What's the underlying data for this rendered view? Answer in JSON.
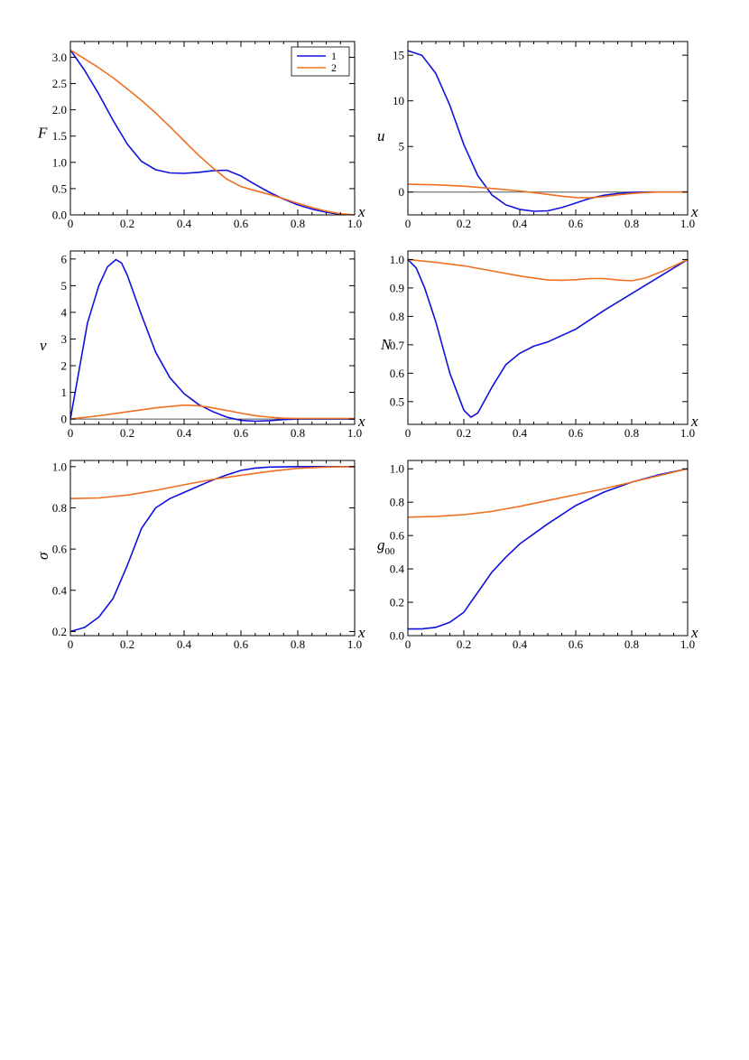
{
  "colors": {
    "series_1": "#1111dd",
    "series_2": "#f07020",
    "axes": "#000000",
    "zero_line": "#555555"
  },
  "chart_data": [
    {
      "type": "line",
      "ylabel": "F",
      "xlabel": "x",
      "xlim": [
        0,
        1.0
      ],
      "ylim": [
        0,
        3.3
      ],
      "grid": false,
      "legend": "top-right",
      "xticks": [
        "0",
        "0.2",
        "0.4",
        "0.6",
        "0.8",
        "1.0"
      ],
      "yticks": [
        "0.0",
        "0.5",
        "1.0",
        "1.5",
        "2.0",
        "2.5",
        "3.0"
      ],
      "series": [
        {
          "name": "1",
          "points": [
            [
              0,
              3.14
            ],
            [
              0.05,
              2.75
            ],
            [
              0.1,
              2.3
            ],
            [
              0.15,
              1.8
            ],
            [
              0.2,
              1.35
            ],
            [
              0.25,
              1.02
            ],
            [
              0.3,
              0.86
            ],
            [
              0.35,
              0.8
            ],
            [
              0.4,
              0.79
            ],
            [
              0.45,
              0.81
            ],
            [
              0.5,
              0.84
            ],
            [
              0.55,
              0.85
            ],
            [
              0.6,
              0.74
            ],
            [
              0.65,
              0.58
            ],
            [
              0.7,
              0.43
            ],
            [
              0.75,
              0.3
            ],
            [
              0.8,
              0.19
            ],
            [
              0.85,
              0.11
            ],
            [
              0.9,
              0.05
            ],
            [
              0.95,
              0.01
            ],
            [
              1.0,
              0
            ]
          ]
        },
        {
          "name": "2",
          "points": [
            [
              0,
              3.14
            ],
            [
              0.05,
              2.97
            ],
            [
              0.1,
              2.8
            ],
            [
              0.15,
              2.61
            ],
            [
              0.2,
              2.4
            ],
            [
              0.25,
              2.18
            ],
            [
              0.3,
              1.94
            ],
            [
              0.35,
              1.68
            ],
            [
              0.4,
              1.41
            ],
            [
              0.45,
              1.14
            ],
            [
              0.5,
              0.9
            ],
            [
              0.55,
              0.68
            ],
            [
              0.6,
              0.54
            ],
            [
              0.65,
              0.46
            ],
            [
              0.7,
              0.39
            ],
            [
              0.75,
              0.31
            ],
            [
              0.8,
              0.22
            ],
            [
              0.85,
              0.14
            ],
            [
              0.9,
              0.07
            ],
            [
              0.95,
              0.02
            ],
            [
              1.0,
              0
            ]
          ]
        }
      ]
    },
    {
      "type": "line",
      "ylabel": "u",
      "xlabel": "x",
      "xlim": [
        0,
        1.0
      ],
      "ylim": [
        -2.5,
        16.5
      ],
      "grid": false,
      "xticks": [
        "0",
        "0.2",
        "0.4",
        "0.6",
        "0.8",
        "1.0"
      ],
      "yticks": [
        "0",
        "5",
        "10",
        "15"
      ],
      "series": [
        {
          "name": "1",
          "points": [
            [
              0,
              15.5
            ],
            [
              0.05,
              15
            ],
            [
              0.1,
              13
            ],
            [
              0.15,
              9.5
            ],
            [
              0.2,
              5.2
            ],
            [
              0.25,
              1.8
            ],
            [
              0.3,
              -0.3
            ],
            [
              0.35,
              -1.4
            ],
            [
              0.4,
              -1.9
            ],
            [
              0.45,
              -2.1
            ],
            [
              0.5,
              -2.05
            ],
            [
              0.55,
              -1.7
            ],
            [
              0.6,
              -1.2
            ],
            [
              0.65,
              -0.7
            ],
            [
              0.7,
              -0.35
            ],
            [
              0.75,
              -0.15
            ],
            [
              0.8,
              -0.05
            ],
            [
              0.85,
              0
            ],
            [
              0.9,
              0
            ],
            [
              1.0,
              0
            ]
          ]
        },
        {
          "name": "2",
          "points": [
            [
              0,
              0.85
            ],
            [
              0.1,
              0.8
            ],
            [
              0.2,
              0.65
            ],
            [
              0.3,
              0.4
            ],
            [
              0.4,
              0.12
            ],
            [
              0.5,
              -0.25
            ],
            [
              0.55,
              -0.45
            ],
            [
              0.6,
              -0.6
            ],
            [
              0.65,
              -0.62
            ],
            [
              0.7,
              -0.5
            ],
            [
              0.75,
              -0.3
            ],
            [
              0.8,
              -0.15
            ],
            [
              0.85,
              -0.05
            ],
            [
              0.9,
              0
            ],
            [
              1.0,
              0
            ]
          ]
        }
      ]
    },
    {
      "type": "line",
      "ylabel": "v",
      "xlabel": "x",
      "xlim": [
        0,
        1.0
      ],
      "ylim": [
        -0.2,
        6.3
      ],
      "grid": false,
      "xticks": [
        "0",
        "0.2",
        "0.4",
        "0.6",
        "0.8",
        "1.0"
      ],
      "yticks": [
        "0",
        "1",
        "2",
        "3",
        "4",
        "5",
        "6"
      ],
      "series": [
        {
          "name": "1",
          "points": [
            [
              0,
              0
            ],
            [
              0.03,
              1.8
            ],
            [
              0.06,
              3.6
            ],
            [
              0.1,
              5.0
            ],
            [
              0.13,
              5.7
            ],
            [
              0.16,
              5.98
            ],
            [
              0.18,
              5.85
            ],
            [
              0.2,
              5.4
            ],
            [
              0.25,
              3.9
            ],
            [
              0.3,
              2.5
            ],
            [
              0.35,
              1.55
            ],
            [
              0.4,
              0.95
            ],
            [
              0.45,
              0.55
            ],
            [
              0.5,
              0.28
            ],
            [
              0.55,
              0.07
            ],
            [
              0.6,
              -0.05
            ],
            [
              0.65,
              -0.08
            ],
            [
              0.7,
              -0.06
            ],
            [
              0.75,
              -0.02
            ],
            [
              0.8,
              0
            ],
            [
              1.0,
              0
            ]
          ]
        },
        {
          "name": "2",
          "points": [
            [
              0,
              0
            ],
            [
              0.1,
              0.12
            ],
            [
              0.2,
              0.27
            ],
            [
              0.3,
              0.42
            ],
            [
              0.4,
              0.52
            ],
            [
              0.45,
              0.5
            ],
            [
              0.5,
              0.42
            ],
            [
              0.55,
              0.32
            ],
            [
              0.6,
              0.22
            ],
            [
              0.65,
              0.13
            ],
            [
              0.7,
              0.07
            ],
            [
              0.75,
              0.03
            ],
            [
              0.8,
              0.02
            ],
            [
              0.9,
              0.02
            ],
            [
              1.0,
              0.02
            ]
          ]
        }
      ]
    },
    {
      "type": "line",
      "ylabel": "N",
      "xlabel": "x",
      "xlim": [
        0,
        1.0
      ],
      "ylim": [
        0.42,
        1.03
      ],
      "grid": false,
      "xticks": [
        "0",
        "0.2",
        "0.4",
        "0.6",
        "0.8",
        "1.0"
      ],
      "yticks": [
        "0.5",
        "0.6",
        "0.7",
        "0.8",
        "0.9",
        "1.0"
      ],
      "ytick_values": [
        0.5,
        0.6,
        0.7,
        0.8,
        0.9,
        1.0
      ],
      "series": [
        {
          "name": "1",
          "points": [
            [
              0,
              1.0
            ],
            [
              0.03,
              0.97
            ],
            [
              0.06,
              0.9
            ],
            [
              0.1,
              0.78
            ],
            [
              0.15,
              0.6
            ],
            [
              0.2,
              0.47
            ],
            [
              0.225,
              0.445
            ],
            [
              0.25,
              0.46
            ],
            [
              0.3,
              0.55
            ],
            [
              0.35,
              0.63
            ],
            [
              0.4,
              0.67
            ],
            [
              0.45,
              0.695
            ],
            [
              0.5,
              0.71
            ],
            [
              0.6,
              0.755
            ],
            [
              0.7,
              0.82
            ],
            [
              0.8,
              0.88
            ],
            [
              0.9,
              0.94
            ],
            [
              1.0,
              1.0
            ]
          ]
        },
        {
          "name": "2",
          "points": [
            [
              0,
              1.0
            ],
            [
              0.1,
              0.99
            ],
            [
              0.2,
              0.978
            ],
            [
              0.3,
              0.96
            ],
            [
              0.4,
              0.942
            ],
            [
              0.5,
              0.928
            ],
            [
              0.55,
              0.927
            ],
            [
              0.6,
              0.929
            ],
            [
              0.65,
              0.933
            ],
            [
              0.7,
              0.933
            ],
            [
              0.75,
              0.928
            ],
            [
              0.8,
              0.925
            ],
            [
              0.85,
              0.935
            ],
            [
              0.9,
              0.955
            ],
            [
              0.95,
              0.977
            ],
            [
              1.0,
              1.0
            ]
          ]
        }
      ]
    },
    {
      "type": "line",
      "ylabel": "σ",
      "xlabel": "x",
      "xlim": [
        0,
        1.0
      ],
      "ylim": [
        0.18,
        1.03
      ],
      "grid": false,
      "xticks": [
        "0",
        "0.2",
        "0.4",
        "0.6",
        "0.8",
        "1.0"
      ],
      "yticks": [
        "0.2",
        "0.4",
        "0.6",
        "0.8",
        "1.0"
      ],
      "series": [
        {
          "name": "1",
          "points": [
            [
              0,
              0.2
            ],
            [
              0.05,
              0.22
            ],
            [
              0.1,
              0.27
            ],
            [
              0.15,
              0.36
            ],
            [
              0.2,
              0.52
            ],
            [
              0.25,
              0.7
            ],
            [
              0.3,
              0.8
            ],
            [
              0.35,
              0.845
            ],
            [
              0.4,
              0.875
            ],
            [
              0.45,
              0.905
            ],
            [
              0.5,
              0.935
            ],
            [
              0.55,
              0.96
            ],
            [
              0.6,
              0.982
            ],
            [
              0.65,
              0.993
            ],
            [
              0.7,
              0.998
            ],
            [
              0.8,
              1.0
            ],
            [
              1.0,
              1.0
            ]
          ]
        },
        {
          "name": "2",
          "points": [
            [
              0,
              0.845
            ],
            [
              0.1,
              0.848
            ],
            [
              0.2,
              0.862
            ],
            [
              0.3,
              0.885
            ],
            [
              0.4,
              0.912
            ],
            [
              0.5,
              0.938
            ],
            [
              0.6,
              0.958
            ],
            [
              0.7,
              0.977
            ],
            [
              0.8,
              0.992
            ],
            [
              0.9,
              0.998
            ],
            [
              1.0,
              1.0
            ]
          ]
        }
      ]
    },
    {
      "type": "line",
      "ylabel": "g00",
      "xlabel": "x",
      "xlim": [
        0,
        1.0
      ],
      "ylim": [
        0,
        1.05
      ],
      "grid": false,
      "xticks": [
        "0",
        "0.2",
        "0.4",
        "0.6",
        "0.8",
        "1.0"
      ],
      "yticks": [
        "0.0",
        "0.2",
        "0.4",
        "0.6",
        "0.8",
        "1.0"
      ],
      "series": [
        {
          "name": "1",
          "points": [
            [
              0,
              0.04
            ],
            [
              0.05,
              0.04
            ],
            [
              0.1,
              0.05
            ],
            [
              0.15,
              0.08
            ],
            [
              0.2,
              0.14
            ],
            [
              0.25,
              0.26
            ],
            [
              0.3,
              0.38
            ],
            [
              0.35,
              0.47
            ],
            [
              0.4,
              0.55
            ],
            [
              0.5,
              0.67
            ],
            [
              0.6,
              0.78
            ],
            [
              0.7,
              0.86
            ],
            [
              0.8,
              0.92
            ],
            [
              0.9,
              0.965
            ],
            [
              1.0,
              1.0
            ]
          ]
        },
        {
          "name": "2",
          "points": [
            [
              0,
              0.71
            ],
            [
              0.1,
              0.715
            ],
            [
              0.2,
              0.725
            ],
            [
              0.3,
              0.745
            ],
            [
              0.4,
              0.775
            ],
            [
              0.5,
              0.81
            ],
            [
              0.6,
              0.845
            ],
            [
              0.7,
              0.88
            ],
            [
              0.8,
              0.92
            ],
            [
              0.9,
              0.96
            ],
            [
              1.0,
              1.0
            ]
          ]
        }
      ]
    }
  ]
}
